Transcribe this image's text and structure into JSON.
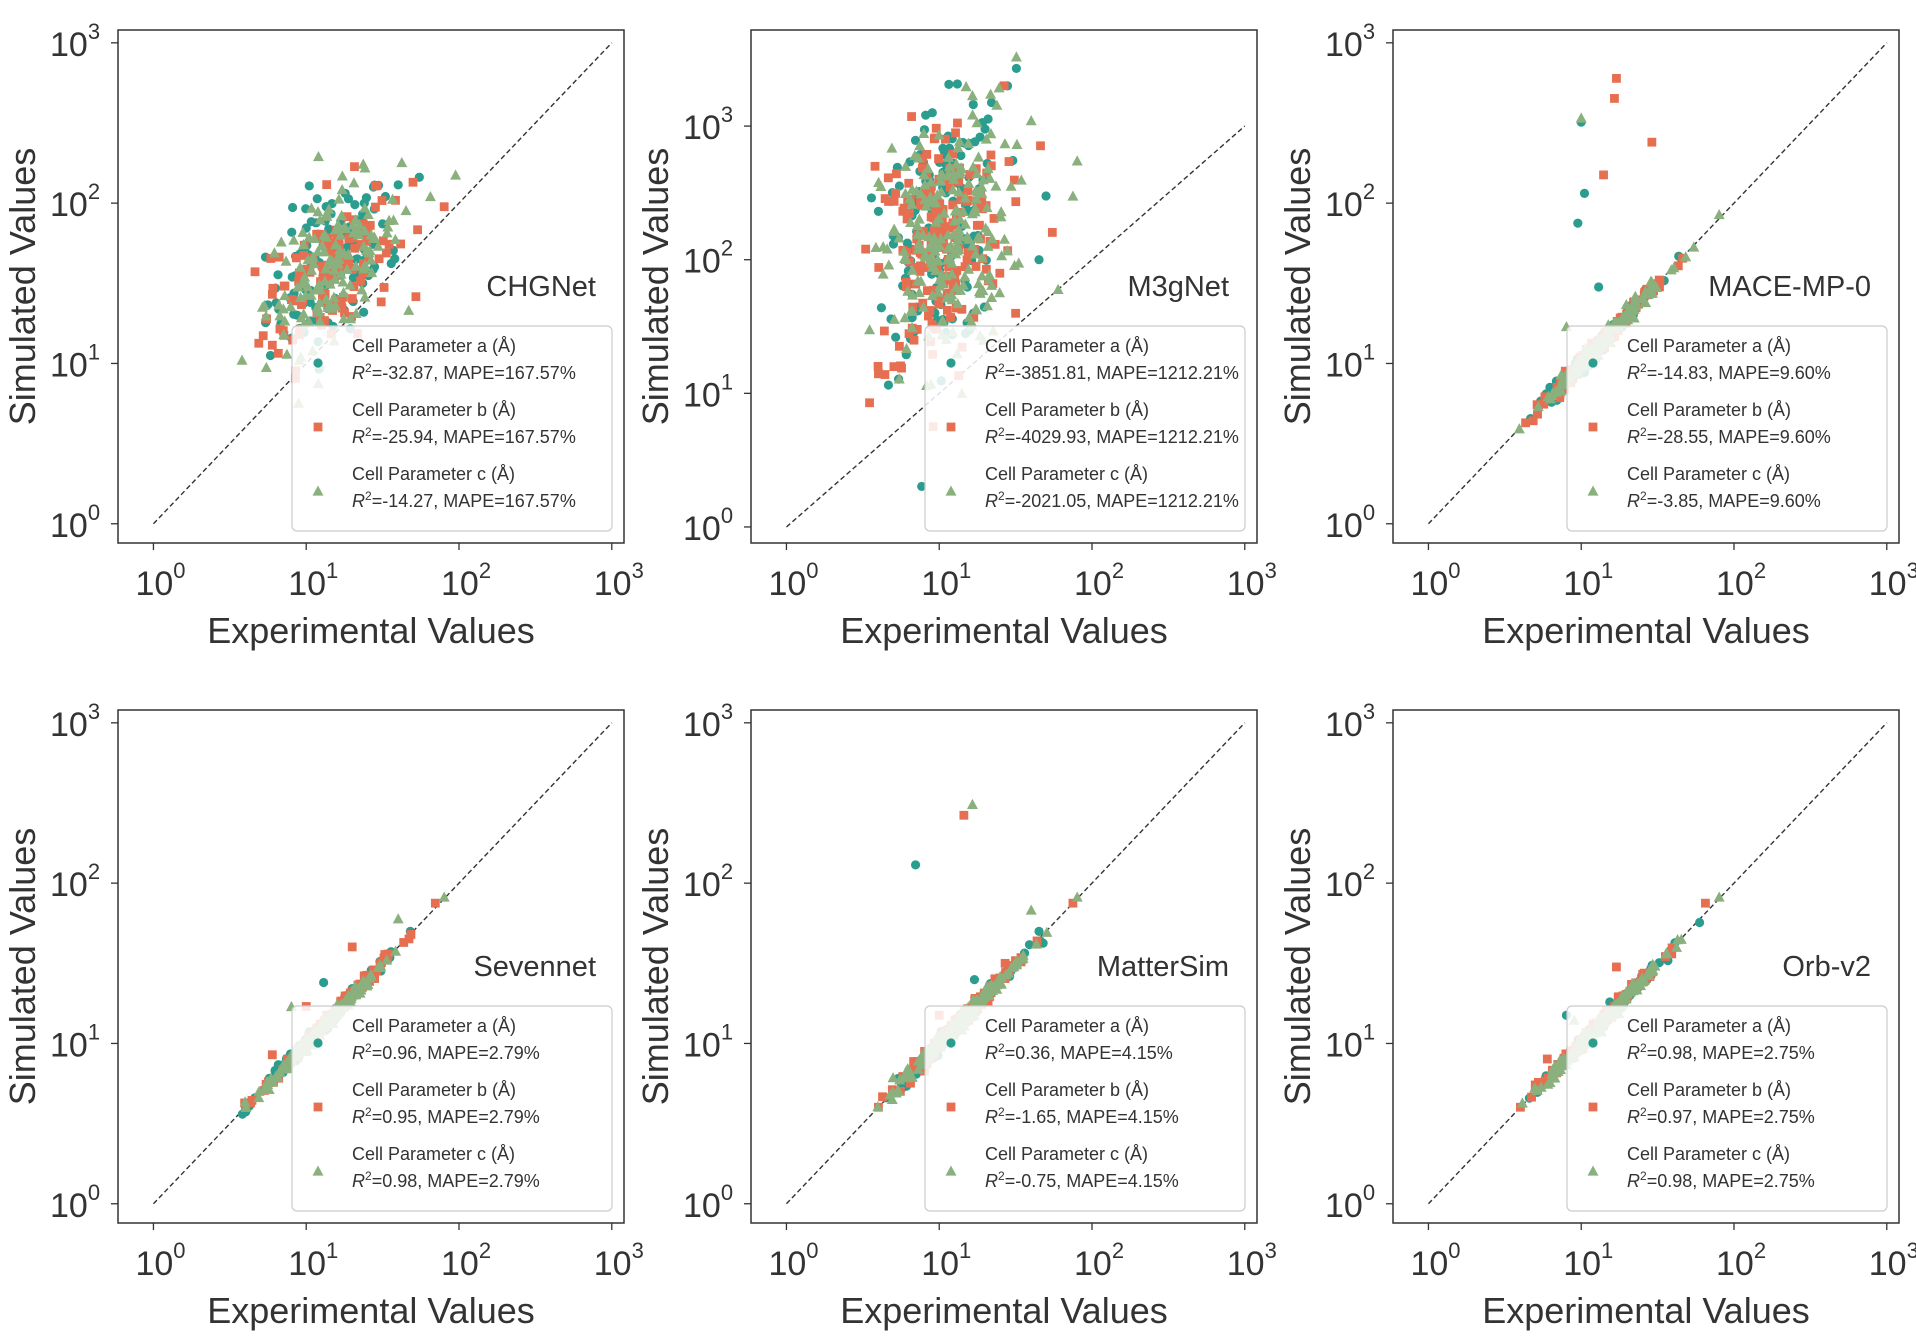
{
  "figure": {
    "xlabel": "Experimental Values",
    "ylabel": "Simulated Values"
  },
  "style": {
    "series_colors": [
      "#2a9d8f",
      "#e76f51",
      "#8ab17d"
    ],
    "series_markers": [
      "circle",
      "square",
      "triangle"
    ]
  },
  "chart_data": [
    {
      "type": "scatter",
      "title": "CHGNet",
      "xscale": "log",
      "yscale": "log",
      "xlim": [
        1,
        1000
      ],
      "ylim": [
        1,
        1000
      ],
      "reference_line": "y = x (dashed)",
      "legend_position": "lower-right",
      "series": [
        {
          "name": "Cell Parameter a (Å)",
          "r2": "-32.87",
          "mape": "167.57%",
          "center": [
            14,
            40
          ],
          "spread": [
            0.2,
            0.23
          ],
          "count": 110,
          "outliers": [
            [
              55,
              145
            ],
            [
              40,
              130
            ],
            [
              33,
              110
            ],
            [
              24,
              100
            ],
            [
              18,
              115
            ],
            [
              10,
              70
            ],
            [
              38,
              45
            ],
            [
              36,
              42
            ],
            [
              28,
              40
            ],
            [
              15,
              17
            ]
          ]
        },
        {
          "name": "Cell Parameter b (Å)",
          "r2": "-25.94",
          "mape": "167.57%",
          "center": [
            14,
            38
          ],
          "spread": [
            0.21,
            0.24
          ],
          "count": 120,
          "outliers": [
            [
              80,
              95
            ],
            [
              50,
              135
            ],
            [
              6,
              27
            ],
            [
              5.5,
              19
            ],
            [
              6,
              13
            ],
            [
              8,
              25
            ],
            [
              30,
              45
            ],
            [
              25,
              60
            ]
          ]
        },
        {
          "name": "Cell Parameter c (Å)",
          "r2": "-14.27",
          "mape": "167.57%",
          "center": [
            15,
            42
          ],
          "spread": [
            0.22,
            0.22
          ],
          "count": 140,
          "outliers": [
            [
              3.8,
              10.5
            ],
            [
              95,
              150
            ],
            [
              65,
              110
            ],
            [
              45,
              90
            ],
            [
              12,
              7.5
            ],
            [
              9,
              10.5
            ]
          ]
        }
      ]
    },
    {
      "type": "scatter",
      "title": "M3gNet",
      "xscale": "log",
      "yscale": "log",
      "xlim": [
        1,
        1000
      ],
      "ylim": [
        1,
        5000
      ],
      "reference_line": "y = x (dashed)",
      "legend_position": "lower-right",
      "series": [
        {
          "name": "Cell Parameter a (Å)",
          "r2": "-3851.81",
          "mape": "1212.21%",
          "center": [
            10,
            150
          ],
          "spread": [
            0.2,
            0.45
          ],
          "count": 160,
          "outliers": [
            [
              32,
              2700
            ],
            [
              28,
              2000
            ],
            [
              22,
              1500
            ],
            [
              50,
              300
            ],
            [
              7,
              300
            ],
            [
              3.6,
              290
            ],
            [
              4,
              230
            ],
            [
              45,
              100
            ]
          ]
        },
        {
          "name": "Cell Parameter b (Å)",
          "r2": "-4029.93",
          "mape": "1212.21%",
          "center": [
            10,
            130
          ],
          "spread": [
            0.21,
            0.47
          ],
          "count": 190,
          "outliers": [
            [
              3.5,
              8.5
            ],
            [
              3.8,
              500
            ],
            [
              3.3,
              120
            ],
            [
              55,
              160
            ],
            [
              4,
              14
            ]
          ]
        },
        {
          "name": "Cell Parameter c (Å)",
          "r2": "-2021.05",
          "mape": "1212.21%",
          "center": [
            11,
            140
          ],
          "spread": [
            0.21,
            0.46
          ],
          "count": 220,
          "outliers": [
            [
              32,
              3300
            ],
            [
              80,
              550
            ],
            [
              75,
              300
            ],
            [
              40,
              1100
            ],
            [
              60,
              60
            ],
            [
              3.5,
              30
            ]
          ]
        }
      ]
    },
    {
      "type": "scatter",
      "title": "MACE-MP-0",
      "xscale": "log",
      "yscale": "log",
      "xlim": [
        1,
        1000
      ],
      "ylim": [
        1,
        1000
      ],
      "reference_line": "y = x (dashed)",
      "legend_position": "lower-right",
      "series": [
        {
          "name": "Cell Parameter a (Å)",
          "r2": "-14.83",
          "mape": "9.60%",
          "center": [
            13,
            13
          ],
          "spread": [
            0.2,
            0.025
          ],
          "count": 130,
          "outliers": [
            [
              10,
              320
            ],
            [
              10.5,
              115
            ],
            [
              9.5,
              75
            ],
            [
              13,
              30
            ]
          ]
        },
        {
          "name": "Cell Parameter b (Å)",
          "r2": "-28.55",
          "mape": "9.60%",
          "center": [
            13,
            13
          ],
          "spread": [
            0.2,
            0.025
          ],
          "count": 130,
          "outliers": [
            [
              17,
              600
            ],
            [
              16.5,
              450
            ],
            [
              29,
              240
            ],
            [
              14,
              150
            ]
          ]
        },
        {
          "name": "Cell Parameter c (Å)",
          "r2": "-3.85",
          "mape": "9.60%",
          "center": [
            13,
            13
          ],
          "spread": [
            0.21,
            0.025
          ],
          "count": 150,
          "outliers": [
            [
              10,
              340
            ],
            [
              8,
              17
            ],
            [
              80,
              85
            ]
          ]
        }
      ]
    },
    {
      "type": "scatter",
      "title": "Sevennet",
      "xscale": "log",
      "yscale": "log",
      "xlim": [
        1,
        1000
      ],
      "ylim": [
        1,
        1000
      ],
      "reference_line": "y = x (dashed)",
      "legend_position": "lower-right",
      "series": [
        {
          "name": "Cell Parameter a (Å)",
          "r2": "0.96",
          "mape": "2.79%",
          "center": [
            13,
            13
          ],
          "spread": [
            0.2,
            0.02
          ],
          "count": 130,
          "outliers": [
            [
              13,
              24
            ],
            [
              20,
              22
            ],
            [
              48,
              50
            ]
          ]
        },
        {
          "name": "Cell Parameter b (Å)",
          "r2": "0.95",
          "mape": "2.79%",
          "center": [
            13,
            13
          ],
          "spread": [
            0.2,
            0.02
          ],
          "count": 130,
          "outliers": [
            [
              20,
              40
            ],
            [
              10,
              17
            ],
            [
              6,
              8.5
            ],
            [
              70,
              75
            ],
            [
              4,
              4
            ]
          ]
        },
        {
          "name": "Cell Parameter c (Å)",
          "r2": "0.98",
          "mape": "2.79%",
          "center": [
            13,
            13
          ],
          "spread": [
            0.21,
            0.02
          ],
          "count": 150,
          "outliers": [
            [
              8,
              17
            ],
            [
              40,
              60
            ],
            [
              80,
              82
            ]
          ]
        }
      ]
    },
    {
      "type": "scatter",
      "title": "MatterSim",
      "xscale": "log",
      "yscale": "log",
      "xlim": [
        1,
        1000
      ],
      "ylim": [
        1,
        1000
      ],
      "reference_line": "y = x (dashed)",
      "legend_position": "lower-right",
      "series": [
        {
          "name": "Cell Parameter a (Å)",
          "r2": "0.36",
          "mape": "4.15%",
          "center": [
            13,
            13
          ],
          "spread": [
            0.2,
            0.025
          ],
          "count": 130,
          "outliers": [
            [
              7,
              130
            ],
            [
              17,
              25
            ],
            [
              45,
              50
            ]
          ]
        },
        {
          "name": "Cell Parameter b (Å)",
          "r2": "-1.65",
          "mape": "4.15%",
          "center": [
            13,
            13
          ],
          "spread": [
            0.2,
            0.025
          ],
          "count": 130,
          "outliers": [
            [
              14.5,
              265
            ],
            [
              10,
              15
            ],
            [
              75,
              75
            ],
            [
              4,
              4
            ]
          ]
        },
        {
          "name": "Cell Parameter c (Å)",
          "r2": "-0.75",
          "mape": "4.15%",
          "center": [
            13,
            13
          ],
          "spread": [
            0.21,
            0.025
          ],
          "count": 150,
          "outliers": [
            [
              16.5,
              310
            ],
            [
              40,
              68
            ],
            [
              80,
              82
            ]
          ]
        }
      ]
    },
    {
      "type": "scatter",
      "title": "Orb-v2",
      "xscale": "log",
      "yscale": "log",
      "xlim": [
        1,
        1000
      ],
      "ylim": [
        1,
        1000
      ],
      "reference_line": "y = x (dashed)",
      "legend_position": "lower-right",
      "series": [
        {
          "name": "Cell Parameter a (Å)",
          "r2": "0.98",
          "mape": "2.75%",
          "center": [
            13,
            13
          ],
          "spread": [
            0.2,
            0.02
          ],
          "count": 130,
          "outliers": [
            [
              8,
              15
            ],
            [
              10,
              10.5
            ]
          ]
        },
        {
          "name": "Cell Parameter b (Å)",
          "r2": "0.97",
          "mape": "2.75%",
          "center": [
            13,
            13
          ],
          "spread": [
            0.2,
            0.02
          ],
          "count": 130,
          "outliers": [
            [
              17,
              30
            ],
            [
              65,
              75
            ],
            [
              4,
              4
            ],
            [
              6,
              8
            ]
          ]
        },
        {
          "name": "Cell Parameter c (Å)",
          "r2": "0.98",
          "mape": "2.75%",
          "center": [
            13,
            13
          ],
          "spread": [
            0.21,
            0.02
          ],
          "count": 150,
          "outliers": [
            [
              80,
              82
            ],
            [
              9,
              14
            ]
          ]
        }
      ]
    }
  ]
}
